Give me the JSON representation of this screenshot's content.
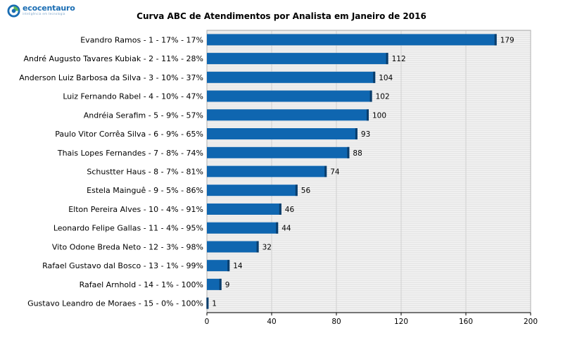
{
  "logo": {
    "name": "ecocentauro",
    "tagline": "inteligência em tecnologia"
  },
  "chart_data": {
    "type": "bar",
    "orientation": "horizontal",
    "title": "Curva ABC de Atendimentos por Analista em Janeiro de 2016",
    "categories": [
      "Evandro Ramos  -  1  -  17%  -  17%",
      "André Augusto Tavares Kubiak  -  2  -  11%  -  28%",
      "Anderson Luiz Barbosa da Silva  -  3  -  10%  -  37%",
      "Luiz Fernando Rabel  -  4  -  10%  -  47%",
      "Andréia Serafim  -  5  -  9%  -  57%",
      "Paulo Vitor Corrêa Silva  -  6  -  9%  -  65%",
      "Thais Lopes Fernandes  -  7  -  8%  -  74%",
      "Schustter Haus  -  8  -  7%  -  81%",
      "Estela Mainguê  -  9  -  5%  -  86%",
      "Elton Pereira Alves  -  10  -  4%  -  91%",
      "Leonardo Felipe Gallas  -  11  -  4%  -  95%",
      "Vito Odone Breda Neto  -  12  -  3%  -  98%",
      "Rafael Gustavo dal Bosco  -  13  -  1%  -  99%",
      "Rafael Arnhold  -  14  -  1%  -  100%",
      "Gustavo Leandro de Moraes  -  15  -  0%  -  100%"
    ],
    "values": [
      179,
      112,
      104,
      102,
      100,
      93,
      88,
      74,
      56,
      46,
      44,
      32,
      14,
      9,
      1
    ],
    "xlim": [
      0,
      200
    ],
    "xticks": [
      0,
      40,
      80,
      120,
      160,
      200
    ],
    "xlabel": "",
    "ylabel": "",
    "grid": true,
    "legend": "none",
    "bar_color": "#0f66b0",
    "bar_shadow_color": "#0a3d6b",
    "background_stripe_color": "#dcdcdc"
  }
}
